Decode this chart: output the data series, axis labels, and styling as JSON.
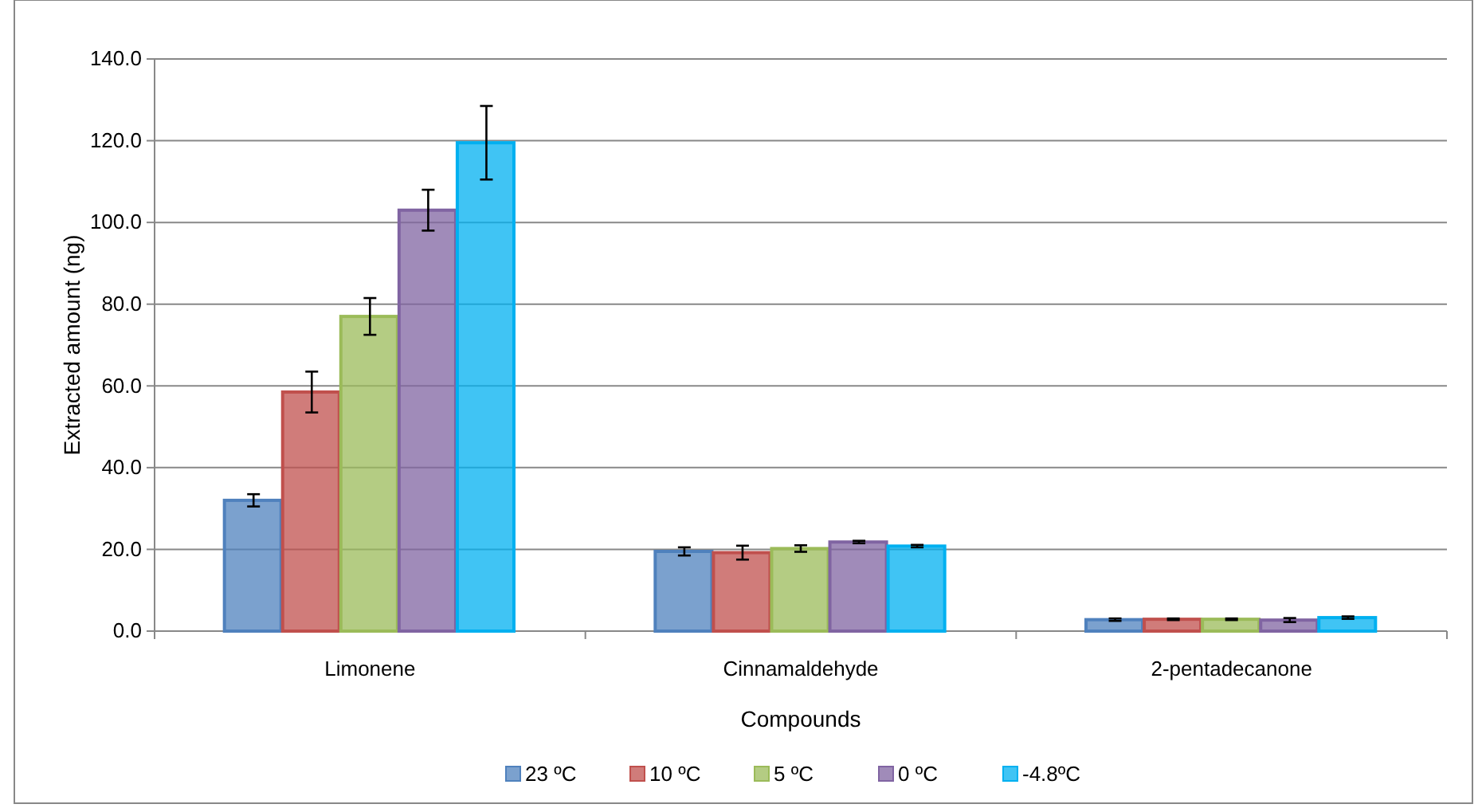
{
  "chart_data": {
    "type": "bar",
    "xlabel": "Compounds",
    "ylabel": "Extracted amount (ng)",
    "categories": [
      "Limonene",
      "Cinnamaldehyde",
      "2-pentadecanone"
    ],
    "series": [
      {
        "name": "23 ºC",
        "color": "#4f81bd",
        "values": [
          32,
          19.5,
          2.8
        ],
        "errors": [
          1.5,
          1,
          0.3
        ]
      },
      {
        "name": "10 ºC",
        "color": "#c0504d",
        "values": [
          58.5,
          19.2,
          2.9
        ],
        "errors": [
          5,
          1.7,
          0.2
        ]
      },
      {
        "name": "5 ºC",
        "color": "#9bbb59",
        "values": [
          77,
          20.2,
          2.9
        ],
        "errors": [
          4.5,
          0.8,
          0.2
        ]
      },
      {
        "name": "0 ºC",
        "color": "#8064a2",
        "values": [
          103,
          21.8,
          2.7
        ],
        "errors": [
          5,
          0.3,
          0.5
        ]
      },
      {
        "name": "-4.8ºC",
        "color": "#00b0f0",
        "values": [
          119.5,
          20.8,
          3.3
        ],
        "errors": [
          9,
          0.3,
          0.3
        ]
      }
    ],
    "ylim": [
      0,
      140
    ],
    "yticks": [
      {
        "value": 0,
        "label": "0.0"
      },
      {
        "value": 20,
        "label": "20.0"
      },
      {
        "value": 40,
        "label": "40.0"
      },
      {
        "value": 60,
        "label": "60.0"
      },
      {
        "value": 80,
        "label": "80.0"
      },
      {
        "value": 100,
        "label": "100.0"
      },
      {
        "value": 120,
        "label": "120.0"
      },
      {
        "value": 140,
        "label": "140.0"
      }
    ],
    "grid": "y",
    "legend": "bottom"
  }
}
